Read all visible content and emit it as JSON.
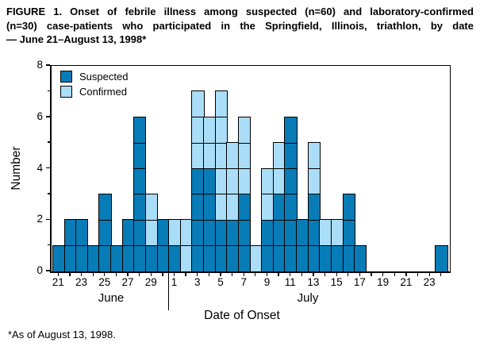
{
  "figure": {
    "title_lines": [
      "FIGURE 1. Onset of febrile illness among suspected (n=60) and laboratory-confirmed",
      "(n=30) case-patients who participated in the Springfield, Illinois, triathlon, by date",
      "— June 21–August 13, 1998*"
    ],
    "footnote": "*As of August 13, 1998."
  },
  "chart_data": {
    "type": "bar",
    "subtype": "stacked-unit-epicurve",
    "title": "FIGURE 1. Onset of febrile illness among suspected (n=60) and laboratory-confirmed (n=30) case-patients who participated in the Springfield, Illinois, triathlon, by date — June 21–August 13, 1998",
    "xlabel": "Date of Onset",
    "ylabel": "Number",
    "ylim": [
      0,
      8
    ],
    "yticks": [
      0,
      1,
      2,
      3,
      4,
      5,
      6,
      7,
      8
    ],
    "ytick_labeled": [
      0,
      2,
      4,
      6,
      8
    ],
    "grid": "off",
    "legend_position": "top-left-inside",
    "legend": [
      {
        "name": "Suspected",
        "code": "S",
        "n": 60,
        "color": "#087cb7"
      },
      {
        "name": "Confirmed",
        "code": "C",
        "n": 30,
        "color": "#aaddf8"
      }
    ],
    "x_axis": {
      "month_labels": [
        "June",
        "July"
      ],
      "labeled_days": "odd days 21–29 June and 1–23 July",
      "first_day": "June 21",
      "last_day": "July 24"
    },
    "days": [
      {
        "month": "June",
        "day": 21,
        "stack": "S"
      },
      {
        "month": "June",
        "day": 22,
        "stack": "SS"
      },
      {
        "month": "June",
        "day": 23,
        "stack": "SS"
      },
      {
        "month": "June",
        "day": 24,
        "stack": "S"
      },
      {
        "month": "June",
        "day": 25,
        "stack": "SSS"
      },
      {
        "month": "June",
        "day": 26,
        "stack": "S"
      },
      {
        "month": "June",
        "day": 27,
        "stack": "SS"
      },
      {
        "month": "June",
        "day": 28,
        "stack": "SSSSSS"
      },
      {
        "month": "June",
        "day": 29,
        "stack": "SCC"
      },
      {
        "month": "June",
        "day": 30,
        "stack": "SS"
      },
      {
        "month": "July",
        "day": 1,
        "stack": "SC"
      },
      {
        "month": "July",
        "day": 2,
        "stack": "CC"
      },
      {
        "month": "July",
        "day": 3,
        "stack": "SSSSCCC"
      },
      {
        "month": "July",
        "day": 4,
        "stack": "SSSSCC"
      },
      {
        "month": "July",
        "day": 5,
        "stack": "SSCCCCC"
      },
      {
        "month": "July",
        "day": 6,
        "stack": "SSCCC"
      },
      {
        "month": "July",
        "day": 7,
        "stack": "SSSCCC"
      },
      {
        "month": "July",
        "day": 8,
        "stack": "C"
      },
      {
        "month": "July",
        "day": 9,
        "stack": "SSCC"
      },
      {
        "month": "July",
        "day": 10,
        "stack": "SSSCC"
      },
      {
        "month": "July",
        "day": 11,
        "stack": "SSSSSS"
      },
      {
        "month": "July",
        "day": 12,
        "stack": "SS"
      },
      {
        "month": "July",
        "day": 13,
        "stack": "SSSCC"
      },
      {
        "month": "July",
        "day": 14,
        "stack": "SC"
      },
      {
        "month": "July",
        "day": 15,
        "stack": "SC"
      },
      {
        "month": "July",
        "day": 16,
        "stack": "SSS"
      },
      {
        "month": "July",
        "day": 17,
        "stack": "S"
      },
      {
        "month": "July",
        "day": 18,
        "stack": ""
      },
      {
        "month": "July",
        "day": 19,
        "stack": ""
      },
      {
        "month": "July",
        "day": 20,
        "stack": ""
      },
      {
        "month": "July",
        "day": 21,
        "stack": ""
      },
      {
        "month": "July",
        "day": 22,
        "stack": ""
      },
      {
        "month": "July",
        "day": 23,
        "stack": ""
      },
      {
        "month": "July",
        "day": 24,
        "stack": "S"
      }
    ]
  }
}
